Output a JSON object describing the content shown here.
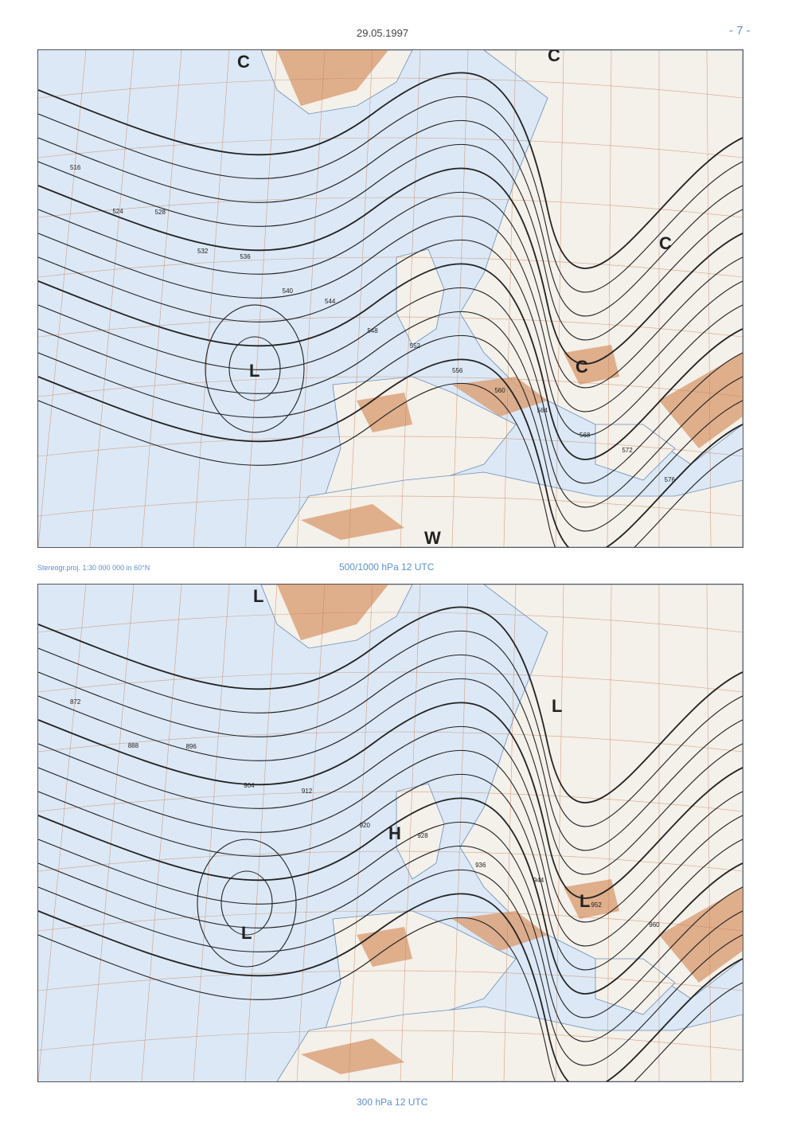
{
  "header": {
    "date": "29.05.1997",
    "page_number": "- 7 -"
  },
  "projection_note": "Stereogr.proj. 1:30 000 000 in 60°N",
  "top_map": {
    "caption": "500/1000 hPa 12 UTC",
    "centers": [
      "C",
      "C",
      "C",
      "L",
      "C",
      "W"
    ],
    "contour_labels": [
      "516",
      "524",
      "528",
      "532",
      "536",
      "540",
      "544",
      "548",
      "552",
      "556",
      "560",
      "564",
      "568",
      "572",
      "576"
    ]
  },
  "bottom_map": {
    "caption": "300 hPa 12 UTC",
    "centers": [
      "L",
      "L",
      "H",
      "L",
      "L"
    ],
    "contour_labels": [
      "872",
      "888",
      "896",
      "904",
      "912",
      "920",
      "928",
      "936",
      "944",
      "952",
      "960"
    ]
  },
  "colors": {
    "sea": "#dce8f6",
    "land": "#f4f0ea",
    "high_terrain": "#dba27a",
    "contour": "#222222",
    "grid": "#c8845a",
    "caption": "#5b8fd0"
  }
}
